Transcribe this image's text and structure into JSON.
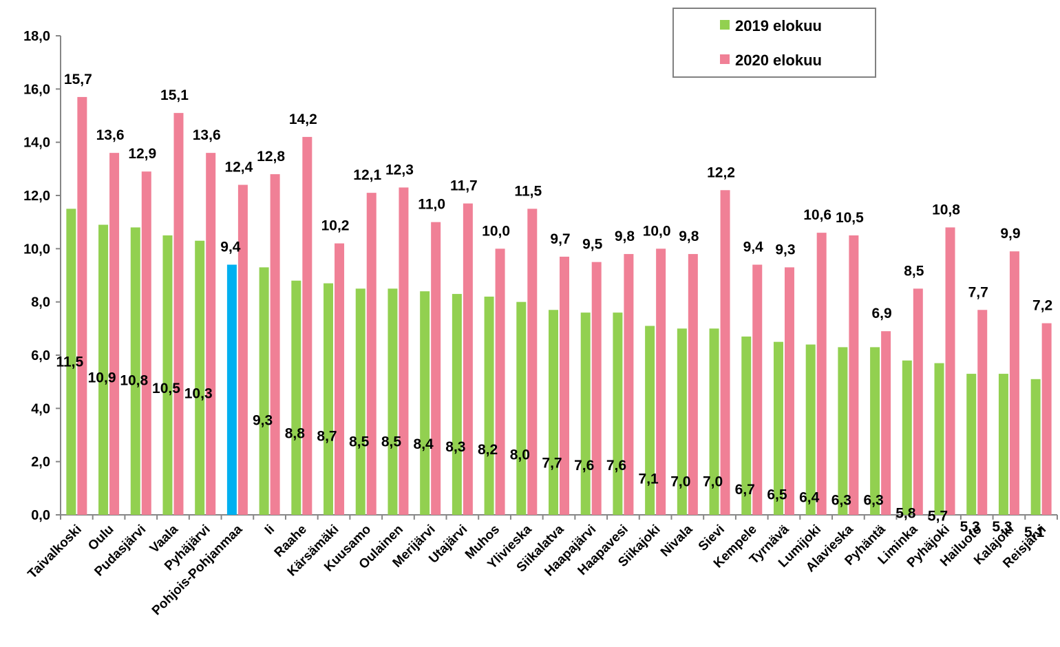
{
  "chart_data": {
    "type": "bar",
    "categories": [
      "Taivalkoski",
      "Oulu",
      "Pudasjärvi",
      "Vaala",
      "Pyhäjärvi",
      "Pohjois-Pohjanmaa",
      "Ii",
      "Raahe",
      "Kärsämäki",
      "Kuusamo",
      "Oulainen",
      "Merijärvi",
      "Utajärvi",
      "Muhos",
      "Ylivieska",
      "Siikalatva",
      "Haapajärvi",
      "Haapavesi",
      "Siikajoki",
      "Nivala",
      "Sievi",
      "Kempele",
      "Tyrnävä",
      "Lumijoki",
      "Alavieska",
      "Pyhäntä",
      "Liminka",
      "Pyhäjoki",
      "Hailuoto",
      "Kalajoki",
      "Reisjärvi"
    ],
    "series": [
      {
        "name": "2019 elokuu",
        "color": "#92d050",
        "highlight_index": 5,
        "highlight_color": "#00b0f0",
        "values": [
          11.5,
          10.9,
          10.8,
          10.5,
          10.3,
          9.4,
          9.3,
          8.8,
          8.7,
          8.5,
          8.5,
          8.4,
          8.3,
          8.2,
          8.0,
          7.7,
          7.6,
          7.6,
          7.1,
          7.0,
          7.0,
          6.7,
          6.5,
          6.4,
          6.3,
          6.3,
          5.8,
          5.7,
          5.3,
          5.3,
          5.1
        ],
        "labels": [
          "11,5",
          "10,9",
          "10,8",
          "10,5",
          "10,3",
          "9,4",
          "9,3",
          "8,8",
          "8,7",
          "8,5",
          "8,5",
          "8,4",
          "8,3",
          "8,2",
          "8,0",
          "7,7",
          "7,6",
          "7,6",
          "7,1",
          "7,0",
          "7,0",
          "6,7",
          "6,5",
          "6,4",
          "6,3",
          "6,3",
          "5,8",
          "5,7",
          "5,3",
          "5,3",
          "5,1"
        ]
      },
      {
        "name": "2020 elokuu",
        "color": "#f08096",
        "values": [
          15.7,
          13.6,
          12.9,
          15.1,
          13.6,
          12.4,
          12.8,
          14.2,
          10.2,
          12.1,
          12.3,
          11.0,
          11.7,
          10.0,
          11.5,
          9.7,
          9.5,
          9.8,
          10.0,
          9.8,
          12.2,
          9.4,
          9.3,
          10.6,
          10.5,
          6.9,
          8.5,
          10.8,
          7.7,
          9.9,
          7.2
        ],
        "labels": [
          "15,7",
          "13,6",
          "12,9",
          "15,1",
          "13,6",
          "12,4",
          "12,8",
          "14,2",
          "10,2",
          "12,1",
          "12,3",
          "11,0",
          "11,7",
          "10,0",
          "11,5",
          "9,7",
          "9,5",
          "9,8",
          "10,0",
          "9,8",
          "12,2",
          "9,4",
          "9,3",
          "10,6",
          "10,5",
          "6,9",
          "8,5",
          "10,8",
          "7,7",
          "9,9",
          "7,2"
        ]
      }
    ],
    "ylim": [
      0,
      18
    ],
    "yticks": [
      "0,0",
      "2,0",
      "4,0",
      "6,0",
      "8,0",
      "10,0",
      "12,0",
      "14,0",
      "16,0",
      "18,0"
    ],
    "legend": {
      "position": "top-right",
      "entries": [
        "2019 elokuu",
        "2020 elokuu"
      ]
    },
    "grid": false,
    "title": "",
    "xlabel": "",
    "ylabel": ""
  }
}
